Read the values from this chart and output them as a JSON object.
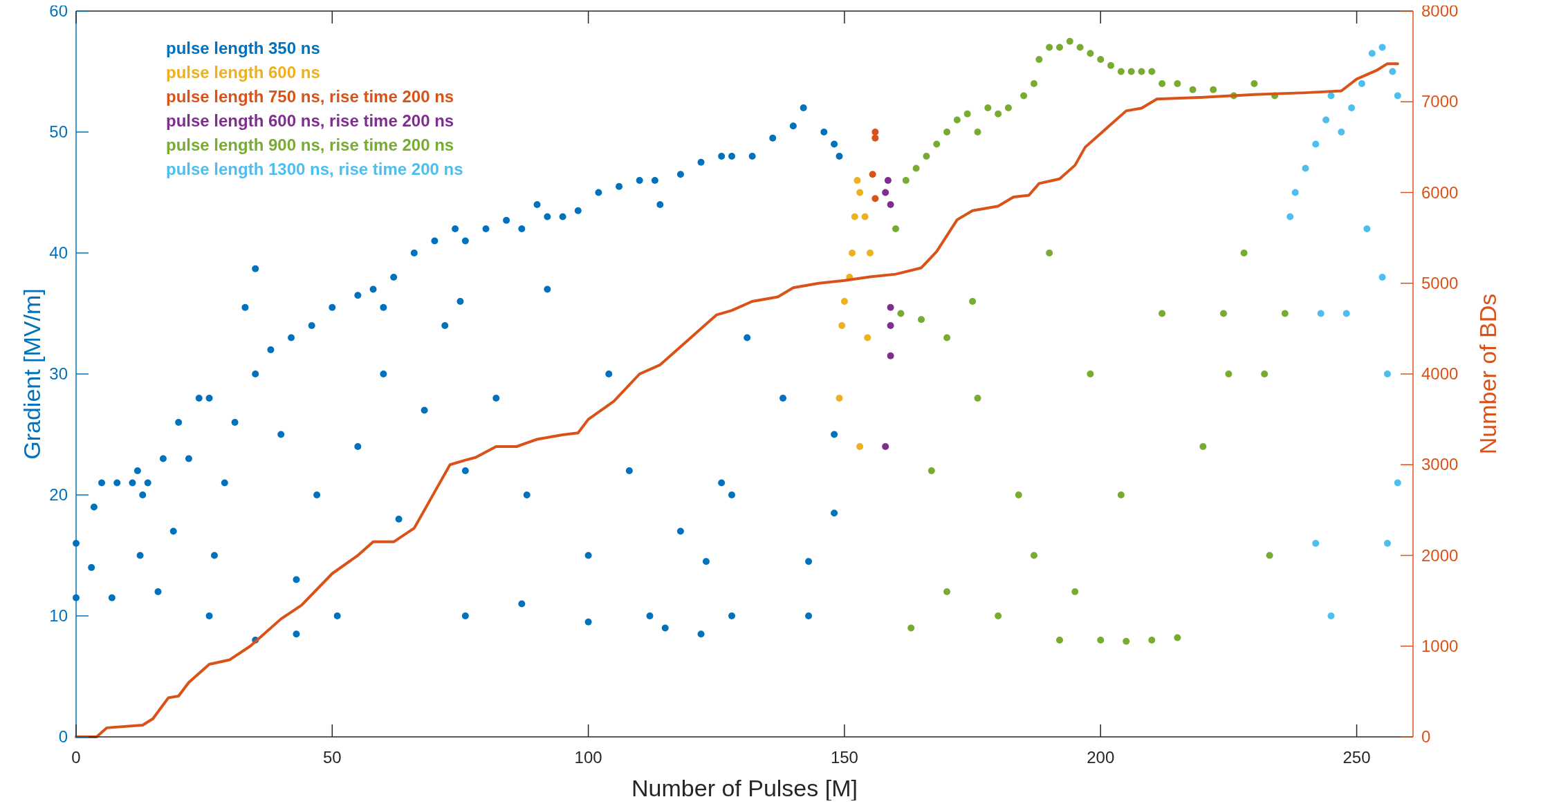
{
  "chart_data": {
    "type": "scatter",
    "xlabel": "Number of Pulses [M]",
    "ylabel": "Gradient [MV/m]",
    "y2label": "Number of BDs",
    "xlim": [
      0,
      261
    ],
    "xticks": [
      0,
      50,
      100,
      150,
      200,
      250
    ],
    "ylim": [
      0,
      60
    ],
    "yticks": [
      0,
      10,
      20,
      30,
      40,
      50,
      60
    ],
    "y2lim": [
      0,
      8000
    ],
    "y2ticks": [
      0,
      1000,
      2000,
      3000,
      4000,
      5000,
      6000,
      7000,
      8000
    ],
    "grid": false,
    "legend": "top left",
    "marker": "circle",
    "series": [
      {
        "name": "pulse length 350 ns",
        "color": "#0072bd",
        "x": [
          0,
          3,
          3.5,
          5,
          8,
          11,
          12,
          12.5,
          14,
          17,
          20,
          24,
          26,
          29,
          31,
          35,
          38,
          42,
          46,
          50,
          55,
          58,
          60,
          62,
          66,
          70,
          74,
          75,
          76,
          80,
          84,
          87,
          90,
          92,
          95,
          98,
          102,
          106,
          110,
          113,
          114,
          118,
          122,
          126,
          128,
          132,
          136,
          140,
          142,
          146,
          148,
          149,
          0,
          7,
          13,
          16,
          19,
          22,
          26,
          27,
          33,
          35,
          35,
          40,
          43,
          43,
          47,
          51,
          55,
          60,
          63,
          68,
          72,
          76,
          76,
          82,
          87,
          88,
          92,
          100,
          100,
          104,
          108,
          112,
          115,
          118,
          122,
          123,
          126,
          128,
          128,
          131,
          138,
          143,
          143,
          148,
          148
        ],
        "values": [
          16,
          14,
          19,
          21,
          21,
          21,
          22,
          15,
          21,
          23,
          26,
          28,
          28,
          21,
          26,
          30,
          32,
          33,
          34,
          35.5,
          36.5,
          37,
          35.5,
          38,
          40,
          41,
          42,
          36,
          41,
          42,
          42.7,
          42,
          44,
          43,
          43,
          43.5,
          45,
          45.5,
          46,
          46,
          44,
          46.5,
          47.5,
          48,
          48,
          48,
          49.5,
          50.5,
          52,
          50,
          49,
          48,
          11.5,
          11.5,
          20,
          12,
          17,
          23,
          10,
          15,
          35.5,
          38.7,
          8,
          25,
          8.5,
          13,
          20,
          10,
          24,
          30,
          18,
          27,
          34,
          10,
          22,
          28,
          11,
          20,
          37,
          9.5,
          15,
          30,
          22,
          10,
          9,
          17,
          8.5,
          14.5,
          21,
          10,
          20,
          33,
          28,
          10,
          14.5,
          25,
          18.5
        ]
      },
      {
        "name": "pulse length 600 ns",
        "color": "#edb120",
        "x": [
          149,
          149.5,
          150,
          151,
          151.5,
          152,
          152.5,
          153,
          153,
          154,
          154.5,
          155
        ],
        "values": [
          28,
          34,
          36,
          38,
          40,
          43,
          46,
          24,
          45,
          43,
          33,
          40
        ]
      },
      {
        "name": "pulse length 750 ns, rise time 200 ns",
        "color": "#d95319",
        "x": [
          156,
          156,
          155.5,
          156
        ],
        "values": [
          50,
          49.5,
          46.5,
          44.5
        ]
      },
      {
        "name": "pulse length 600 ns, rise time 200 ns",
        "color": "#7e2f8e",
        "x": [
          158,
          158.5,
          159,
          159,
          159,
          159,
          158
        ],
        "values": [
          45,
          46,
          44,
          35.5,
          34,
          31.5,
          24
        ]
      },
      {
        "name": "pulse length 900 ns, rise time 200 ns",
        "color": "#77ac30",
        "x": [
          160,
          162,
          164,
          166,
          168,
          170,
          172,
          174,
          176,
          178,
          180,
          182,
          185,
          187,
          188,
          190,
          192,
          194,
          196,
          198,
          200,
          202,
          204,
          206,
          208,
          210,
          212,
          215,
          218,
          222,
          226,
          230,
          234,
          161,
          165,
          170,
          175,
          163,
          170,
          180,
          187,
          192,
          195,
          200,
          205,
          210,
          215,
          220,
          225,
          228,
          232,
          233,
          236,
          190,
          198,
          204,
          212,
          184,
          176,
          167,
          224
        ],
        "values": [
          42,
          46,
          47,
          48,
          49,
          50,
          51,
          51.5,
          50,
          52,
          51.5,
          52,
          53,
          54,
          56,
          57,
          57,
          57.5,
          57,
          56.5,
          56,
          55.5,
          55,
          55,
          55,
          55,
          54,
          54,
          53.5,
          53.5,
          53,
          54,
          53,
          35,
          34.5,
          33,
          36,
          9,
          12,
          10,
          15,
          8,
          12,
          8,
          7.9,
          8,
          8.2,
          24,
          30,
          40,
          30,
          15,
          35,
          40,
          30,
          20,
          35,
          20,
          28,
          22,
          35
        ]
      },
      {
        "name": "pulse length 1300 ns, rise time 200 ns",
        "color": "#4dbeee",
        "x": [
          237,
          238,
          240,
          242,
          244,
          245,
          247,
          249,
          251,
          253,
          255,
          257,
          258,
          243,
          248,
          252,
          255,
          256,
          258,
          245,
          242,
          256
        ],
        "values": [
          43,
          45,
          47,
          49,
          51,
          53,
          50,
          52,
          54,
          56.5,
          57,
          55,
          53,
          35,
          35,
          42,
          38,
          30,
          21,
          10,
          16,
          16
        ]
      },
      {
        "type": "line",
        "axis": "y2",
        "color": "#d95319",
        "marker": "none",
        "x": [
          0,
          4,
          6,
          13,
          15,
          18,
          20,
          22,
          26,
          30,
          34,
          40,
          44,
          50,
          55,
          58,
          62,
          66,
          70,
          73,
          76,
          78,
          82,
          86,
          90,
          95,
          98,
          100,
          105,
          110,
          114,
          120,
          125,
          128,
          132,
          137,
          140,
          145,
          150,
          155,
          160,
          165,
          168,
          172,
          175,
          180,
          183,
          186,
          188,
          192,
          195,
          197,
          200,
          202,
          205,
          208,
          211,
          220,
          230,
          240,
          247,
          250,
          254,
          256,
          258
        ],
        "values": [
          0,
          0,
          100,
          130,
          200,
          430,
          450,
          600,
          800,
          850,
          1000,
          1300,
          1450,
          1800,
          2000,
          2150,
          2150,
          2300,
          2700,
          3000,
          3050,
          3080,
          3200,
          3200,
          3280,
          3330,
          3350,
          3500,
          3700,
          4000,
          4100,
          4400,
          4650,
          4700,
          4800,
          4850,
          4950,
          5000,
          5030,
          5070,
          5100,
          5170,
          5350,
          5700,
          5800,
          5850,
          5950,
          5970,
          6100,
          6150,
          6300,
          6500,
          6650,
          6750,
          6900,
          6930,
          7030,
          7050,
          7080,
          7100,
          7120,
          7250,
          7350,
          7420,
          7420
        ]
      }
    ]
  }
}
